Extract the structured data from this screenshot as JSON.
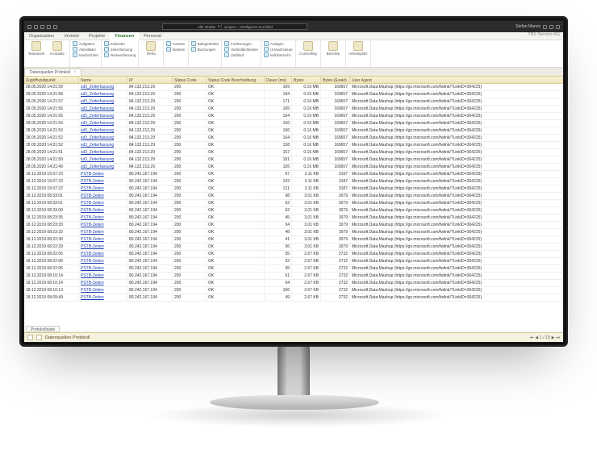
{
  "titlebar": {
    "search_left": "Alle Inhalte",
    "search_right": "scopen – Intelligente Suchfeld",
    "user": "Stefan Manns"
  },
  "menutabs": {
    "items": [
      "Organisation",
      "Vertrieb",
      "Projekte",
      "Finanzen",
      "Personal"
    ],
    "active_index": 3,
    "right": "TBS Service AG"
  },
  "ribbon": {
    "g1_big1": "Teamwork",
    "g1_big2": "Kontakte",
    "g2_r1": "Aufgaben",
    "g2_r2": "Aktivitäten",
    "g2_r3": "Nachrichten",
    "g3_r1": "Kalender",
    "g3_r2": "Zeiterfassung",
    "g3_r3": "Reiseerfassung",
    "g4_big": "Reha",
    "g5_r1": "Kassen",
    "g5_r2": "Banken",
    "g6_r1": "Belegerkebtn",
    "g6_r2": "Buchungen",
    "g7_r1": "Forderungen",
    "g7_r2": "Verbindlichkeiten",
    "g7_r3": "Zahllauf",
    "g8_r1": "Anlagen",
    "g8_r2": "Umsatzsteuer",
    "g8_r3": "teilÜbersicht",
    "g9_big": "Controlling",
    "g10_big": "Berichte",
    "g11_big": "Arbeitsplatz"
  },
  "tabstrip": {
    "tab1": "Datenquellen Protokoll"
  },
  "grid": {
    "columns": [
      "Zugriffszeitpunkt",
      "Name",
      "IP",
      "Status Code",
      "Status Code Beschreibung",
      "Dauer (ms)",
      "Bytes",
      "Bytes (Exakt)",
      "User Agent"
    ],
    "link_name_a": "sd3_Zeiterfassung",
    "link_name_b": "PSTB-Zeiten",
    "ip_a": "84.132.213.29",
    "ip_b": "80.242.167.194",
    "ua": "Microsoft.Data.Mashup (https://go.microsoft.com/fwlink/?LinkID=304225)",
    "rows": [
      {
        "t": "28.05.2020 14:21:59",
        "n": "a",
        "ip": "a",
        "sc": "200",
        "sd": "OK",
        "d": "169",
        "b": "0.16 MB",
        "be": "169657"
      },
      {
        "t": "28.05.2020 14:21:58",
        "n": "a",
        "ip": "a",
        "sc": "200",
        "sd": "OK",
        "d": "194",
        "b": "0.16 MB",
        "be": "169657"
      },
      {
        "t": "28.05.2020 14:21:57",
        "n": "a",
        "ip": "a",
        "sc": "200",
        "sd": "OK",
        "d": "171",
        "b": "0.16 MB",
        "be": "169657"
      },
      {
        "t": "28.05.2020 14:21:56",
        "n": "a",
        "ip": "a",
        "sc": "200",
        "sd": "OK",
        "d": "165",
        "b": "0.16 MB",
        "be": "169657"
      },
      {
        "t": "28.05.2020 14:21:55",
        "n": "a",
        "ip": "a",
        "sc": "200",
        "sd": "OK",
        "d": "164",
        "b": "0.16 MB",
        "be": "169657"
      },
      {
        "t": "28.05.2020 14:21:54",
        "n": "a",
        "ip": "a",
        "sc": "200",
        "sd": "OK",
        "d": "166",
        "b": "0.16 MB",
        "be": "169657"
      },
      {
        "t": "28.05.2020 14:21:53",
        "n": "a",
        "ip": "a",
        "sc": "200",
        "sd": "OK",
        "d": "166",
        "b": "0.16 MB",
        "be": "169657"
      },
      {
        "t": "28.05.2020 14:21:52",
        "n": "a",
        "ip": "a",
        "sc": "200",
        "sd": "OK",
        "d": "164",
        "b": "0.16 MB",
        "be": "169657"
      },
      {
        "t": "28.05.2020 14:21:52",
        "n": "a",
        "ip": "a",
        "sc": "200",
        "sd": "OK",
        "d": "158",
        "b": "0.16 MB",
        "be": "169657"
      },
      {
        "t": "28.05.2020 14:21:51",
        "n": "a",
        "ip": "a",
        "sc": "200",
        "sd": "OK",
        "d": "157",
        "b": "0.16 MB",
        "be": "169657"
      },
      {
        "t": "28.05.2020 14:21:50",
        "n": "a",
        "ip": "a",
        "sc": "200",
        "sd": "OK",
        "d": "181",
        "b": "0.16 MB",
        "be": "169657"
      },
      {
        "t": "28.05.2020 14:21:49",
        "n": "a",
        "ip": "a",
        "sc": "200",
        "sd": "OK",
        "d": "165",
        "b": "0.16 MB",
        "be": "169657"
      },
      {
        "t": "18.12.2019 15:07:23",
        "n": "b",
        "ip": "b",
        "sc": "200",
        "sd": "OK",
        "d": "67",
        "b": "3.11 KB",
        "be": "3187"
      },
      {
        "t": "18.12.2019 15:07:23",
        "n": "b",
        "ip": "b",
        "sc": "200",
        "sd": "OK",
        "d": "192",
        "b": "3.11 KB",
        "be": "3187"
      },
      {
        "t": "18.12.2019 15:07:22",
        "n": "b",
        "ip": "b",
        "sc": "200",
        "sd": "OK",
        "d": "121",
        "b": "3.11 KB",
        "be": "3187"
      },
      {
        "t": "18.12.2019 08:33:01",
        "n": "b",
        "ip": "b",
        "sc": "200",
        "sd": "OK",
        "d": "68",
        "b": "3.01 KB",
        "be": "3079"
      },
      {
        "t": "18.12.2019 08:33:01",
        "n": "b",
        "ip": "b",
        "sc": "200",
        "sd": "OK",
        "d": "62",
        "b": "3.01 KB",
        "be": "3079"
      },
      {
        "t": "18.12.2019 08:33:00",
        "n": "b",
        "ip": "b",
        "sc": "200",
        "sd": "OK",
        "d": "62",
        "b": "3.01 KB",
        "be": "3079"
      },
      {
        "t": "18.12.2019 08:23:35",
        "n": "b",
        "ip": "b",
        "sc": "200",
        "sd": "OK",
        "d": "45",
        "b": "3.01 KB",
        "be": "3079"
      },
      {
        "t": "18.12.2019 08:23:33",
        "n": "b",
        "ip": "b",
        "sc": "200",
        "sd": "OK",
        "d": "54",
        "b": "3.01 KB",
        "be": "3079"
      },
      {
        "t": "18.12.2019 08:23:32",
        "n": "b",
        "ip": "b",
        "sc": "200",
        "sd": "OK",
        "d": "48",
        "b": "3.01 KB",
        "be": "3079"
      },
      {
        "t": "18.12.2019 08:22:30",
        "n": "b",
        "ip": "b",
        "sc": "200",
        "sd": "OK",
        "d": "41",
        "b": "3.01 KB",
        "be": "3079"
      },
      {
        "t": "18.12.2019 08:22:29",
        "n": "b",
        "ip": "b",
        "sc": "200",
        "sd": "OK",
        "d": "56",
        "b": "3.01 KB",
        "be": "3079"
      },
      {
        "t": "18.12.2019 08:22:06",
        "n": "b",
        "ip": "b",
        "sc": "200",
        "sd": "OK",
        "d": "55",
        "b": "2.67 KB",
        "be": "2732"
      },
      {
        "t": "18.12.2019 08:22:06",
        "n": "b",
        "ip": "b",
        "sc": "200",
        "sd": "OK",
        "d": "52",
        "b": "2.67 KB",
        "be": "2732"
      },
      {
        "t": "18.12.2019 08:22:05",
        "n": "b",
        "ip": "b",
        "sc": "200",
        "sd": "OK",
        "d": "55",
        "b": "2.67 KB",
        "be": "2732"
      },
      {
        "t": "18.12.2019 08:10:14",
        "n": "b",
        "ip": "b",
        "sc": "200",
        "sd": "OK",
        "d": "61",
        "b": "2.67 KB",
        "be": "2732"
      },
      {
        "t": "18.12.2019 08:10:14",
        "n": "b",
        "ip": "b",
        "sc": "200",
        "sd": "OK",
        "d": "64",
        "b": "2.67 KB",
        "be": "2732"
      },
      {
        "t": "18.12.2019 08:10:13",
        "n": "b",
        "ip": "b",
        "sc": "200",
        "sd": "OK",
        "d": "106",
        "b": "2.67 KB",
        "be": "2732"
      },
      {
        "t": "18.12.2019 08:09:49",
        "n": "b",
        "ip": "b",
        "sc": "200",
        "sd": "OK",
        "d": "49",
        "b": "2.67 KB",
        "be": "2732"
      }
    ]
  },
  "bottomtabs": {
    "tab1": "Protokolldatei"
  },
  "status": {
    "label": "Datenquellen Protokoll",
    "pager": "1 / 19"
  }
}
